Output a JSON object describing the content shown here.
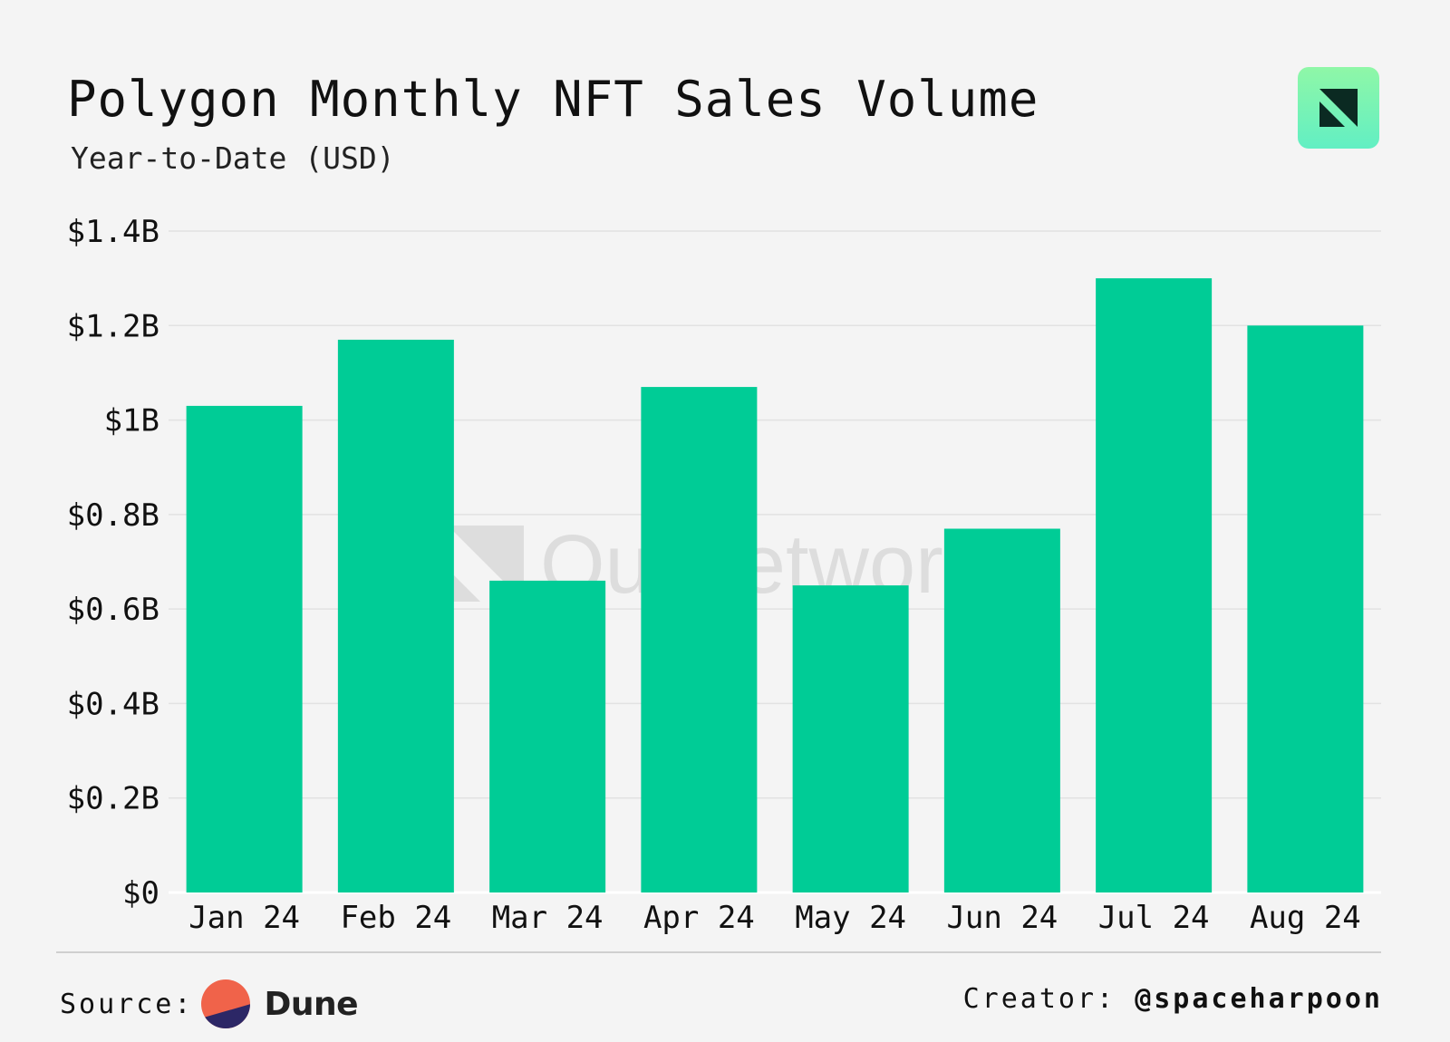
{
  "header": {
    "title": "Polygon Monthly NFT Sales Volume",
    "subtitle": "Year-to-Date (USD)"
  },
  "watermark": "OurNetwork",
  "footer": {
    "source_label": "Source:",
    "source_name": "Dune",
    "creator_label": "Creator:",
    "creator_handle": "@spaceharpoon"
  },
  "colors": {
    "bar": "#00cc96",
    "background": "#f4f4f4",
    "grid": "#e2e2e2"
  },
  "chart_data": {
    "type": "bar",
    "title": "Polygon Monthly NFT Sales Volume",
    "subtitle": "Year-to-Date (USD)",
    "categories": [
      "Jan 24",
      "Feb 24",
      "Mar 24",
      "Apr 24",
      "May 24",
      "Jun 24",
      "Jul 24",
      "Aug 24"
    ],
    "values": [
      1.03,
      1.17,
      0.66,
      1.07,
      0.65,
      0.77,
      1.3,
      1.2
    ],
    "value_unit": "billion USD",
    "ylim": [
      0,
      1.4
    ],
    "yticks": [
      0,
      0.2,
      0.4,
      0.6,
      0.8,
      1.0,
      1.2,
      1.4
    ],
    "ytick_labels": [
      "$0",
      "$0.2B",
      "$0.4B",
      "$0.6B",
      "$0.8B",
      "$1B",
      "$1.2B",
      "$1.4B"
    ],
    "xlabel": "",
    "ylabel": "",
    "grid": true,
    "legend": "none"
  }
}
